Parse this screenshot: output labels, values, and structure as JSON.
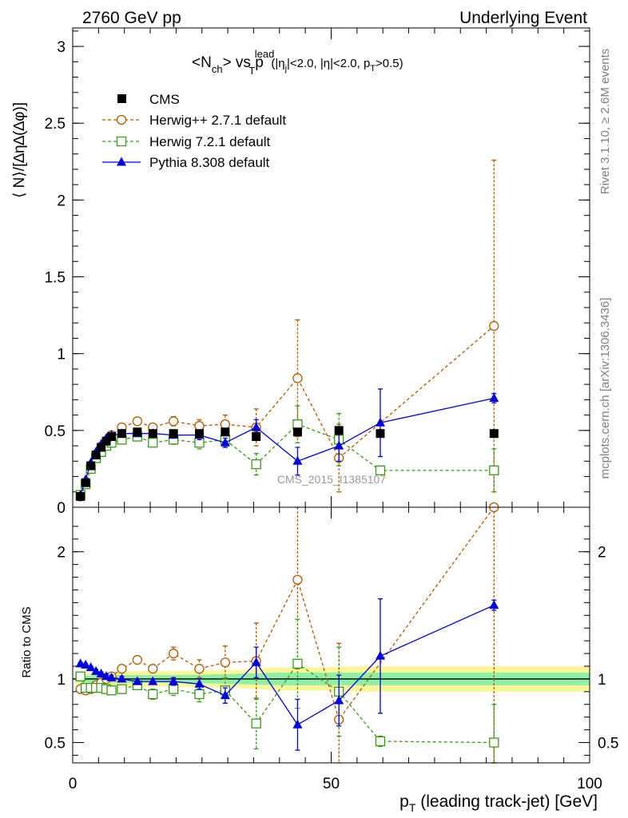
{
  "header": {
    "left": "2760 GeV pp",
    "right": "Underlying Event"
  },
  "side": {
    "rivet": "Rivet 3.1.10, ≥ 2.6M events",
    "mcplots": "mcplots.cern.ch [arXiv:1306.3436]"
  },
  "watermark": "CMS_2015_I1385107",
  "plot_title": {
    "main": "<N",
    "main_sub": "ch",
    "vs": "> vs p",
    "pt_sup": "lead",
    "pt_sub": "T",
    "cuts_a": "(|η",
    "cuts_a_sub": "j",
    "cuts_b": "|<2.0, |η|<2.0, p",
    "cuts_b_sub": "T",
    "cuts_c": ">0.5)"
  },
  "colors": {
    "cms": "#000000",
    "herwigpp": "#b35900",
    "herwig7": "#3a9a16",
    "pythia": "#0000dd",
    "band_yellow": "#fbf697",
    "band_green": "#8fefa7"
  },
  "chart_data": [
    {
      "type": "scatter",
      "panel": "main",
      "ylabel": "⟨ N⟩/[∆η∆(∆φ)]",
      "xlim": [
        0,
        100
      ],
      "ylim": [
        0,
        3.12
      ],
      "yticks": [
        "0",
        "0.5",
        "1",
        "1.5",
        "2",
        "2.5",
        "3"
      ],
      "ytick_values": [
        0,
        0.5,
        1,
        1.5,
        2,
        2.5,
        3
      ],
      "legend_placement": "top-left",
      "series": [
        {
          "name": "CMS",
          "style": "square-filled",
          "x": [
            1.5,
            2.5,
            3.5,
            4.5,
            5.5,
            6.5,
            7.5,
            9.5,
            12.5,
            15.5,
            19.5,
            24.5,
            29.5,
            35.5,
            43.5,
            51.5,
            59.5,
            81.5
          ],
          "y": [
            0.07,
            0.16,
            0.27,
            0.34,
            0.39,
            0.43,
            0.46,
            0.48,
            0.49,
            0.48,
            0.48,
            0.48,
            0.49,
            0.46,
            0.49,
            0.5,
            0.48,
            0.48
          ],
          "err": [
            0.01,
            0.01,
            0.01,
            0.01,
            0.01,
            0.01,
            0.01,
            0.01,
            0.01,
            0.01,
            0.01,
            0.01,
            0.01,
            0.02,
            0.02,
            0.03,
            0.03,
            0.03
          ]
        },
        {
          "name": "Herwig++ 2.7.1 default",
          "style": "circle-open-dashed",
          "x": [
            1.5,
            2.5,
            3.5,
            4.5,
            5.5,
            6.5,
            7.5,
            9.5,
            12.5,
            15.5,
            19.5,
            24.5,
            29.5,
            35.5,
            43.5,
            51.5,
            81.5
          ],
          "y": [
            0.07,
            0.15,
            0.25,
            0.33,
            0.39,
            0.43,
            0.47,
            0.52,
            0.56,
            0.52,
            0.56,
            0.53,
            0.54,
            0.52,
            0.84,
            0.32,
            1.18
          ],
          "err": [
            0.005,
            0.005,
            0.005,
            0.01,
            0.01,
            0.01,
            0.01,
            0.02,
            0.02,
            0.02,
            0.03,
            0.04,
            0.06,
            0.12,
            0.38,
            0.22,
            1.08
          ]
        },
        {
          "name": "Herwig 7.2.1 default",
          "style": "square-open-dashed",
          "x": [
            1.5,
            2.5,
            3.5,
            4.5,
            5.5,
            6.5,
            7.5,
            9.5,
            12.5,
            15.5,
            19.5,
            24.5,
            29.5,
            35.5,
            43.5,
            51.5,
            59.5,
            81.5
          ],
          "y": [
            0.08,
            0.15,
            0.25,
            0.32,
            0.36,
            0.4,
            0.42,
            0.44,
            0.46,
            0.42,
            0.44,
            0.42,
            0.44,
            0.28,
            0.54,
            0.44,
            0.24,
            0.24
          ],
          "err": [
            0.005,
            0.005,
            0.005,
            0.01,
            0.01,
            0.01,
            0.01,
            0.015,
            0.02,
            0.02,
            0.03,
            0.04,
            0.05,
            0.07,
            0.12,
            0.17,
            0.02,
            0.14
          ]
        },
        {
          "name": "Pythia 8.308 default",
          "style": "triangle-filled-solid",
          "x": [
            1.5,
            2.5,
            3.5,
            4.5,
            5.5,
            6.5,
            7.5,
            9.5,
            12.5,
            15.5,
            19.5,
            24.5,
            29.5,
            35.5,
            43.5,
            51.5,
            59.5,
            81.5
          ],
          "y": [
            0.08,
            0.18,
            0.29,
            0.36,
            0.41,
            0.45,
            0.47,
            0.48,
            0.48,
            0.48,
            0.47,
            0.47,
            0.42,
            0.52,
            0.3,
            0.4,
            0.55,
            0.71
          ],
          "err": [
            0.005,
            0.005,
            0.005,
            0.01,
            0.01,
            0.01,
            0.01,
            0.01,
            0.015,
            0.015,
            0.02,
            0.03,
            0.03,
            0.05,
            0.09,
            0.1,
            0.22,
            0.03
          ]
        }
      ]
    },
    {
      "type": "scatter",
      "panel": "ratio",
      "ylabel": "Ratio to CMS",
      "xlabel_main": "p",
      "xlabel_sub": "T",
      "xlabel_rest": " (leading track-jet) [GeV]",
      "xlim": [
        0,
        100
      ],
      "ylim": [
        0.34,
        2.35
      ],
      "yticks": [
        "0.5",
        "1",
        "2"
      ],
      "ytick_values": [
        0.5,
        1,
        2
      ],
      "xticks": [
        "0",
        "50",
        "100"
      ],
      "xtick_values": [
        0,
        50,
        100
      ],
      "reference_line": 1,
      "band_x": [
        0.5,
        5,
        10,
        20,
        32,
        40,
        48,
        56,
        64,
        72,
        82,
        100
      ],
      "band_yellow_half": [
        0.04,
        0.05,
        0.06,
        0.06,
        0.07,
        0.09,
        0.09,
        0.1,
        0.1,
        0.1,
        0.1,
        0.1
      ],
      "band_green_half": [
        0.02,
        0.03,
        0.03,
        0.03,
        0.04,
        0.05,
        0.05,
        0.05,
        0.05,
        0.05,
        0.05,
        0.05
      ],
      "series": [
        {
          "name": "Herwig++ 2.7.1 default",
          "style": "circle-open-dashed",
          "x": [
            1.5,
            2.5,
            3.5,
            4.5,
            5.5,
            6.5,
            7.5,
            9.5,
            12.5,
            15.5,
            19.5,
            24.5,
            29.5,
            35.5,
            43.5,
            51.5,
            81.5
          ],
          "y": [
            0.92,
            0.91,
            0.92,
            0.95,
            0.97,
            1.0,
            1.02,
            1.08,
            1.15,
            1.08,
            1.2,
            1.08,
            1.13,
            1.14,
            1.78,
            0.68,
            2.4
          ],
          "err": [
            0.01,
            0.01,
            0.01,
            0.015,
            0.015,
            0.02,
            0.02,
            0.03,
            0.03,
            0.03,
            0.05,
            0.07,
            0.13,
            0.3,
            0.7,
            0.6,
            2.2
          ]
        },
        {
          "name": "Herwig 7.2.1 default",
          "style": "square-open-dashed",
          "x": [
            1.5,
            2.5,
            3.5,
            4.5,
            5.5,
            6.5,
            7.5,
            9.5,
            12.5,
            15.5,
            19.5,
            24.5,
            29.5,
            35.5,
            43.5,
            51.5,
            59.5,
            81.5
          ],
          "y": [
            1.02,
            0.93,
            0.93,
            0.93,
            0.93,
            0.92,
            0.91,
            0.92,
            0.95,
            0.88,
            0.92,
            0.88,
            0.91,
            0.65,
            1.12,
            0.9,
            0.51,
            0.5
          ],
          "err": [
            0.01,
            0.01,
            0.01,
            0.015,
            0.015,
            0.02,
            0.02,
            0.03,
            0.03,
            0.04,
            0.05,
            0.06,
            0.1,
            0.2,
            0.35,
            0.35,
            0.04,
            0.3
          ]
        },
        {
          "name": "Pythia 8.308 default",
          "style": "triangle-filled-solid",
          "x": [
            1.5,
            2.5,
            3.5,
            4.5,
            5.5,
            6.5,
            7.5,
            9.5,
            12.5,
            15.5,
            19.5,
            24.5,
            29.5,
            35.5,
            43.5,
            51.5,
            59.5,
            81.5
          ],
          "y": [
            1.12,
            1.11,
            1.09,
            1.06,
            1.04,
            1.02,
            1.01,
            1.0,
            0.98,
            0.98,
            0.98,
            0.96,
            0.87,
            1.13,
            0.64,
            0.83,
            1.18,
            1.58
          ],
          "err": [
            0.01,
            0.01,
            0.01,
            0.015,
            0.015,
            0.02,
            0.02,
            0.02,
            0.02,
            0.02,
            0.03,
            0.04,
            0.06,
            0.12,
            0.2,
            0.2,
            0.45,
            0.04
          ]
        }
      ]
    }
  ]
}
